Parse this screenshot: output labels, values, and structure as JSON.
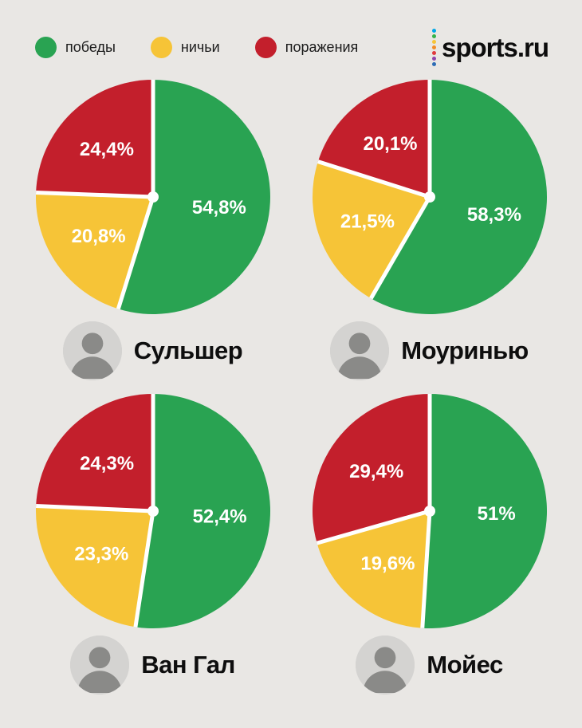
{
  "page": {
    "background": "#e9e7e4"
  },
  "colors": {
    "win": "#29a352",
    "draw": "#f6c437",
    "loss": "#c31f2c",
    "label": "#ffffff"
  },
  "legend": [
    {
      "key": "win",
      "label": "победы"
    },
    {
      "key": "draw",
      "label": "ничьи"
    },
    {
      "key": "loss",
      "label": "поражения"
    }
  ],
  "logo": {
    "text": "sports.ru",
    "dot_colors": [
      "#00a8e8",
      "#35b34a",
      "#f6c437",
      "#f28c28",
      "#e03a3e",
      "#8e44ad",
      "#2d6cb5"
    ]
  },
  "chart_data": [
    {
      "type": "pie",
      "name": "Сульшер",
      "slice_keys": [
        "win",
        "draw",
        "loss"
      ],
      "labels": [
        "победы",
        "ничьи",
        "поражения"
      ],
      "values": [
        54.8,
        20.8,
        24.4
      ],
      "display_labels": [
        "54,8%",
        "20,8%",
        "24,4%"
      ],
      "start_angle_deg": 0,
      "direction": "clockwise",
      "legend_position": "top"
    },
    {
      "type": "pie",
      "name": "Моуринью",
      "slice_keys": [
        "win",
        "draw",
        "loss"
      ],
      "labels": [
        "победы",
        "ничьи",
        "поражения"
      ],
      "values": [
        58.3,
        21.5,
        20.1
      ],
      "display_labels": [
        "58,3%",
        "21,5%",
        "20,1%"
      ],
      "start_angle_deg": 0,
      "direction": "clockwise",
      "legend_position": "top"
    },
    {
      "type": "pie",
      "name": "Ван Гал",
      "slice_keys": [
        "win",
        "draw",
        "loss"
      ],
      "labels": [
        "победы",
        "ничьи",
        "поражения"
      ],
      "values": [
        52.4,
        23.3,
        24.3
      ],
      "display_labels": [
        "52,4%",
        "23,3%",
        "24,3%"
      ],
      "start_angle_deg": 0,
      "direction": "clockwise",
      "legend_position": "top"
    },
    {
      "type": "pie",
      "name": "Мойес",
      "slice_keys": [
        "win",
        "draw",
        "loss"
      ],
      "labels": [
        "победы",
        "ничьи",
        "поражения"
      ],
      "values": [
        51,
        19.6,
        29.4
      ],
      "display_labels": [
        "51%",
        "19,6%",
        "29,4%"
      ],
      "start_angle_deg": 0,
      "direction": "clockwise",
      "legend_position": "top"
    }
  ]
}
